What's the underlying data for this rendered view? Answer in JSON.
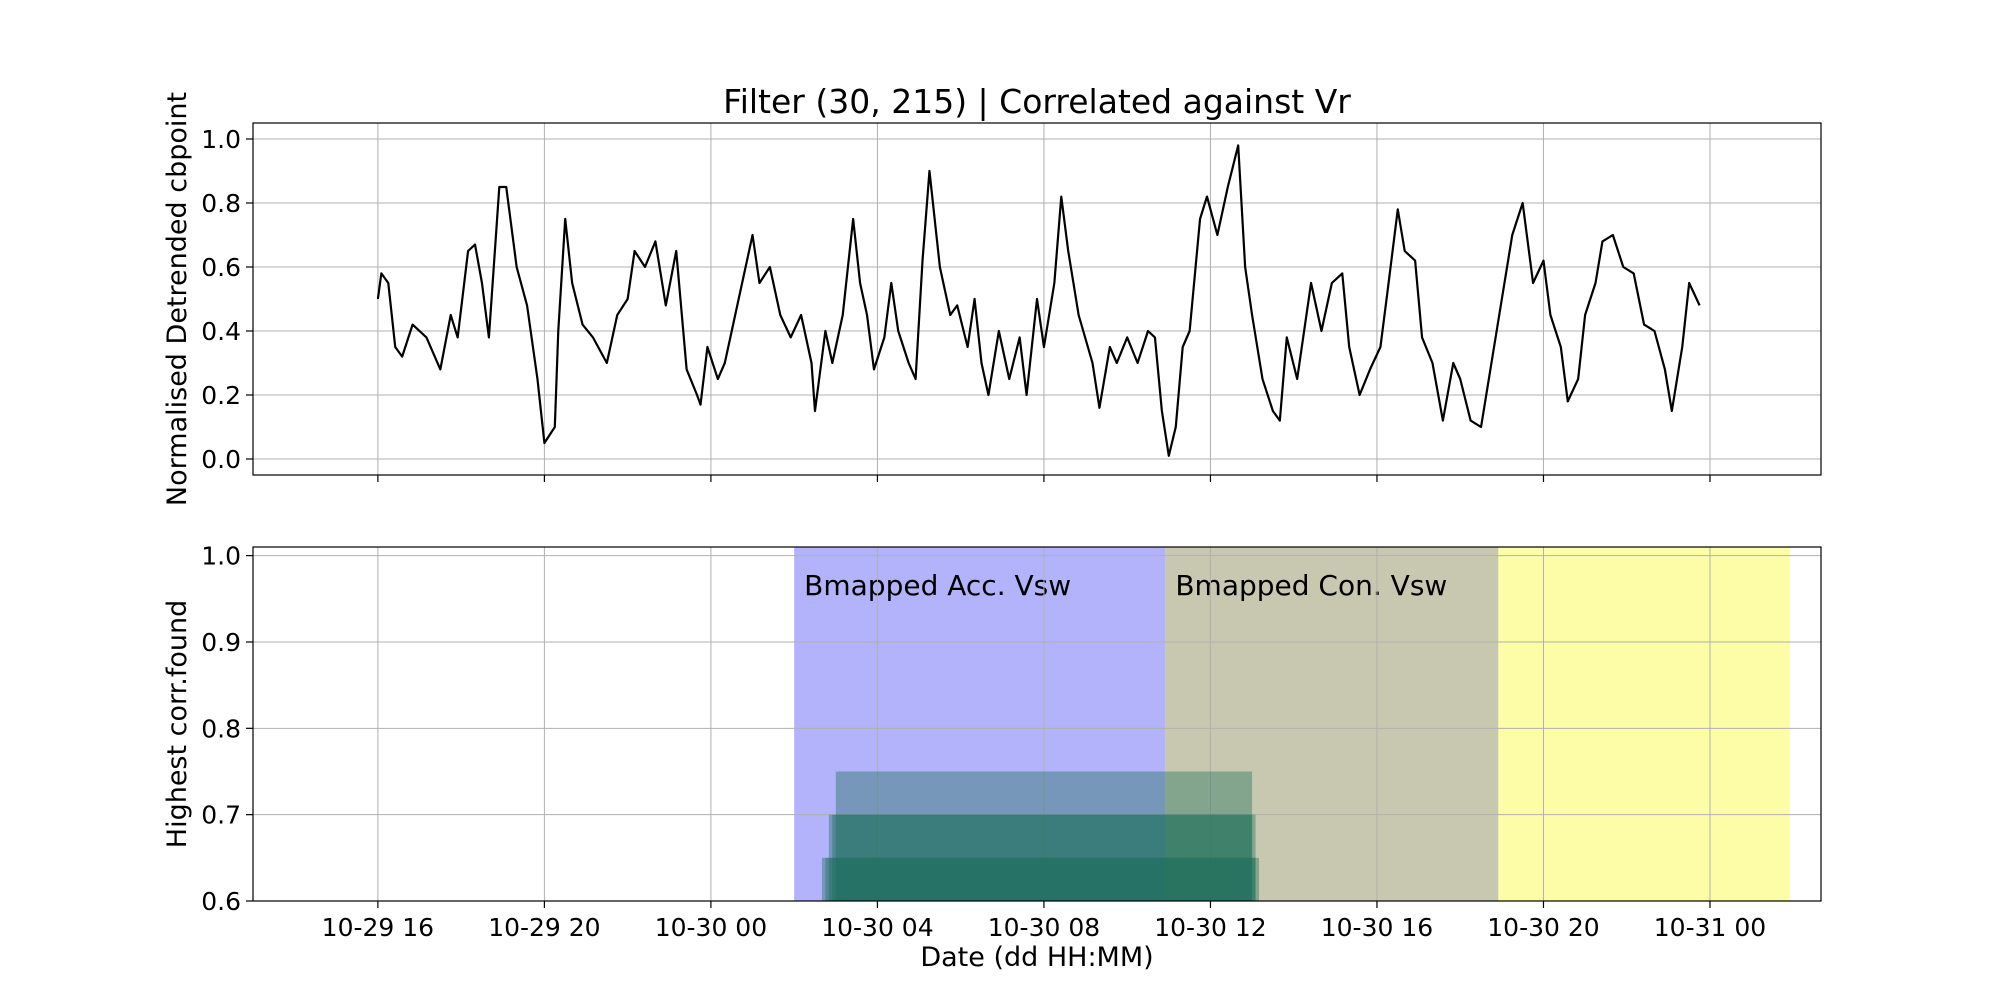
{
  "chart_data": [
    {
      "type": "line",
      "title": "Filter (30, 215) | Correlated against Vr",
      "ylabel": "Normalised Detrended cbpoint",
      "color": "#000000",
      "grid": true,
      "xlim": [
        "10-29 13:00",
        "10-31 02:40"
      ],
      "ylim": [
        -0.05,
        1.05
      ],
      "xticks": [
        "10-29 16:00",
        "10-29 20:00",
        "10-30 00:00",
        "10-30 04:00",
        "10-30 08:00",
        "10-30 12:00",
        "10-30 16:00",
        "10-30 20:00",
        "10-31 00:00"
      ],
      "yticks": [
        {
          "value": 0,
          "label": "0.0"
        },
        0.2,
        0.4,
        0.6,
        0.8,
        {
          "value": 1,
          "label": "1.0"
        }
      ],
      "x": [
        "10-29 16:00",
        "10-29 16:05",
        "10-29 16:15",
        "10-29 16:25",
        "10-29 16:35",
        "10-29 16:50",
        "10-29 17:10",
        "10-29 17:30",
        "10-29 17:45",
        "10-29 17:55",
        "10-29 18:10",
        "10-29 18:20",
        "10-29 18:30",
        "10-29 18:40",
        "10-29 18:55",
        "10-29 19:05",
        "10-29 19:20",
        "10-29 19:35",
        "10-29 19:50",
        "10-29 20:00",
        "10-29 20:15",
        "10-29 20:20",
        "10-29 20:30",
        "10-29 20:40",
        "10-29 20:55",
        "10-29 21:10",
        "10-29 21:30",
        "10-29 21:45",
        "10-29 22:00",
        "10-29 22:10",
        "10-29 22:25",
        "10-29 22:40",
        "10-29 22:55",
        "10-29 23:10",
        "10-29 23:25",
        "10-29 23:40",
        "10-29 23:45",
        "10-29 23:55",
        "10-30 00:10",
        "10-30 00:20",
        "10-30 00:35",
        "10-30 00:45",
        "10-30 01:00",
        "10-30 01:10",
        "10-30 01:25",
        "10-30 01:40",
        "10-30 01:55",
        "10-30 02:10",
        "10-30 02:25",
        "10-30 02:30",
        "10-30 02:45",
        "10-30 02:55",
        "10-30 03:10",
        "10-30 03:25",
        "10-30 03:35",
        "10-30 03:45",
        "10-30 03:55",
        "10-30 04:10",
        "10-30 04:20",
        "10-30 04:30",
        "10-30 04:45",
        "10-30 04:55",
        "10-30 05:05",
        "10-30 05:15",
        "10-30 05:30",
        "10-30 05:45",
        "10-30 05:55",
        "10-30 06:10",
        "10-30 06:20",
        "10-30 06:30",
        "10-30 06:40",
        "10-30 06:55",
        "10-30 07:10",
        "10-30 07:25",
        "10-30 07:35",
        "10-30 07:50",
        "10-30 08:00",
        "10-30 08:15",
        "10-30 08:25",
        "10-30 08:35",
        "10-30 08:50",
        "10-30 09:10",
        "10-30 09:20",
        "10-30 09:35",
        "10-30 09:45",
        "10-30 10:00",
        "10-30 10:15",
        "10-30 10:30",
        "10-30 10:40",
        "10-30 10:50",
        "10-30 11:00",
        "10-30 11:10",
        "10-30 11:20",
        "10-30 11:30",
        "10-30 11:45",
        "10-30 11:55",
        "10-30 12:10",
        "10-30 12:25",
        "10-30 12:40",
        "10-30 12:50",
        "10-30 13:00",
        "10-30 13:15",
        "10-30 13:30",
        "10-30 13:40",
        "10-30 13:50",
        "10-30 14:05",
        "10-30 14:25",
        "10-30 14:40",
        "10-30 14:55",
        "10-30 15:10",
        "10-30 15:20",
        "10-30 15:35",
        "10-30 15:50",
        "10-30 16:05",
        "10-30 16:15",
        "10-30 16:30",
        "10-30 16:40",
        "10-30 16:55",
        "10-30 17:05",
        "10-30 17:20",
        "10-30 17:35",
        "10-30 17:50",
        "10-30 18:00",
        "10-30 18:15",
        "10-30 18:30",
        "10-30 18:45",
        "10-30 19:00",
        "10-30 19:15",
        "10-30 19:30",
        "10-30 19:45",
        "10-30 20:00",
        "10-30 20:10",
        "10-30 20:25",
        "10-30 20:35",
        "10-30 20:50",
        "10-30 21:00",
        "10-30 21:15",
        "10-30 21:25",
        "10-30 21:40",
        "10-30 21:55",
        "10-30 22:10",
        "10-30 22:25",
        "10-30 22:40",
        "10-30 22:55",
        "10-30 23:05",
        "10-30 23:20",
        "10-30 23:30",
        "10-30 23:45"
      ],
      "values": [
        0.5,
        0.58,
        0.55,
        0.35,
        0.32,
        0.42,
        0.38,
        0.28,
        0.45,
        0.38,
        0.65,
        0.67,
        0.55,
        0.38,
        0.85,
        0.85,
        0.6,
        0.48,
        0.25,
        0.05,
        0.1,
        0.4,
        0.75,
        0.55,
        0.42,
        0.38,
        0.3,
        0.45,
        0.5,
        0.65,
        0.6,
        0.68,
        0.48,
        0.65,
        0.28,
        0.2,
        0.17,
        0.35,
        0.25,
        0.3,
        0.45,
        0.55,
        0.7,
        0.55,
        0.6,
        0.45,
        0.38,
        0.45,
        0.3,
        0.15,
        0.4,
        0.3,
        0.45,
        0.75,
        0.55,
        0.45,
        0.28,
        0.38,
        0.55,
        0.4,
        0.3,
        0.25,
        0.62,
        0.9,
        0.6,
        0.45,
        0.48,
        0.35,
        0.5,
        0.3,
        0.2,
        0.4,
        0.25,
        0.38,
        0.2,
        0.5,
        0.35,
        0.55,
        0.82,
        0.65,
        0.45,
        0.3,
        0.16,
        0.35,
        0.3,
        0.38,
        0.3,
        0.4,
        0.38,
        0.15,
        0.01,
        0.1,
        0.35,
        0.4,
        0.75,
        0.82,
        0.7,
        0.85,
        0.98,
        0.6,
        0.45,
        0.25,
        0.15,
        0.12,
        0.38,
        0.25,
        0.55,
        0.4,
        0.55,
        0.58,
        0.35,
        0.2,
        0.28,
        0.35,
        0.52,
        0.78,
        0.65,
        0.62,
        0.38,
        0.3,
        0.12,
        0.3,
        0.25,
        0.12,
        0.1,
        0.3,
        0.5,
        0.7,
        0.8,
        0.55,
        0.62,
        0.45,
        0.35,
        0.18,
        0.25,
        0.45,
        0.55,
        0.68,
        0.7,
        0.6,
        0.58,
        0.42,
        0.4,
        0.28,
        0.15,
        0.35,
        0.55,
        0.48
      ]
    },
    {
      "type": "bar",
      "ylabel": "Highest corr.found",
      "xlabel": "Date (dd HH:MM)",
      "color": "#1b6e5a",
      "opacity": 0.4,
      "grid": true,
      "xlim": [
        "10-29 13:00",
        "10-31 02:40"
      ],
      "ylim": [
        0.6,
        1.01
      ],
      "xticks": [
        {
          "value": "10-29 16:00",
          "label": "10-29 16"
        },
        {
          "value": "10-29 20:00",
          "label": "10-29 20"
        },
        {
          "value": "10-30 00:00",
          "label": "10-30 00"
        },
        {
          "value": "10-30 04:00",
          "label": "10-30 04"
        },
        {
          "value": "10-30 08:00",
          "label": "10-30 08"
        },
        {
          "value": "10-30 12:00",
          "label": "10-30 12"
        },
        {
          "value": "10-30 16:00",
          "label": "10-30 16"
        },
        {
          "value": "10-30 20:00",
          "label": "10-30 20"
        },
        {
          "value": "10-31 00:00",
          "label": "10-31 00"
        }
      ],
      "yticks": [
        0.6,
        0.7,
        0.8,
        0.9,
        {
          "value": 1,
          "label": "1.0"
        }
      ],
      "spans": [
        {
          "start": "10-30 02:00",
          "end": "10-30 10:55",
          "color": "#b3b3fb",
          "label": "Bmapped Acc. Vsw"
        },
        {
          "start": "10-30 10:55",
          "end": "10-30 18:55",
          "color": "#c8c8b0",
          "label": "Bmapped Con. Vsw"
        },
        {
          "start": "10-30 18:55",
          "end": "10-31 01:55",
          "color": "#fdfda8"
        }
      ],
      "start": [
        "10-30 03:00",
        "10-30 02:50",
        "10-30 02:55",
        "10-30 02:40",
        "10-30 02:45"
      ],
      "end": [
        "10-30 13:00",
        "10-30 13:05",
        "10-30 13:00",
        "10-30 13:10",
        "10-30 13:05"
      ],
      "values": [
        0.75,
        0.7,
        0.7,
        0.65,
        0.65
      ]
    }
  ]
}
